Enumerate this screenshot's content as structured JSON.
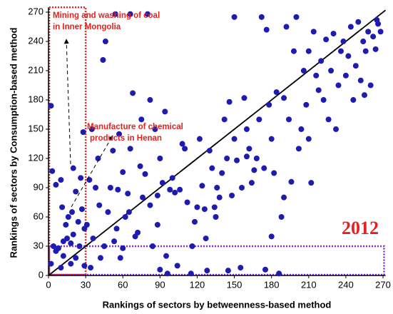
{
  "chart_data": {
    "type": "scatter",
    "xlabel": "Rankings of sectors by betweenness-based method",
    "ylabel": "Rankings of sectors by Consumption-based method",
    "xlim": [
      0,
      272
    ],
    "ylim": [
      0,
      275
    ],
    "xticks": [
      0,
      30,
      60,
      90,
      120,
      150,
      180,
      210,
      240,
      270
    ],
    "yticks": [
      0,
      30,
      60,
      90,
      120,
      150,
      180,
      210,
      240,
      270
    ],
    "annotations": [
      [
        "Mining and washing of coal",
        "in Inner Mongolia"
      ],
      [
        "Manufacture of chemical",
        "products in Henan"
      ],
      [
        "2012"
      ]
    ],
    "series": [
      {
        "color": "#1c1cb0",
        "x": [
          2,
          3,
          2,
          4,
          6,
          8,
          10,
          11,
          12,
          12,
          14,
          15,
          16,
          18,
          18,
          19,
          20,
          22,
          22,
          24,
          26,
          27,
          28,
          29,
          29,
          25,
          10,
          6,
          20,
          31,
          33,
          34,
          35,
          36,
          38,
          40,
          41,
          42,
          44,
          45,
          46,
          48,
          50,
          52,
          53,
          54,
          55,
          56,
          57,
          58,
          60,
          60,
          62,
          64,
          65,
          66,
          66,
          68,
          70,
          72,
          74,
          75,
          76,
          78,
          80,
          82,
          82,
          84,
          86,
          88,
          88,
          90,
          90,
          92,
          94,
          95,
          96,
          98,
          100,
          102,
          104,
          106,
          108,
          110,
          112,
          115,
          116,
          118,
          120,
          122,
          124,
          126,
          127,
          128,
          130,
          132,
          134,
          135,
          136,
          138,
          140,
          142,
          144,
          145,
          146,
          148,
          150,
          150,
          152,
          155,
          156,
          158,
          160,
          160,
          162,
          164,
          166,
          168,
          170,
          172,
          174,
          175,
          176,
          178,
          180,
          180,
          182,
          184,
          186,
          188,
          190,
          190,
          192,
          194,
          196,
          198,
          200,
          202,
          204,
          206,
          208,
          210,
          210,
          212,
          214,
          216,
          218,
          220,
          222,
          224,
          226,
          228,
          230,
          232,
          234,
          236,
          238,
          240,
          242,
          244,
          246,
          248,
          250,
          252,
          254,
          256,
          258,
          260,
          262,
          264,
          266,
          268,
          265,
          255
        ],
        "y": [
          174,
          107,
          12,
          30,
          25,
          28,
          98,
          70,
          35,
          20,
          52,
          38,
          60,
          33,
          12,
          65,
          110,
          86,
          18,
          55,
          100,
          68,
          147,
          48,
          10,
          30,
          8,
          93,
          42,
          52,
          98,
          8,
          150,
          38,
          90,
          120,
          72,
          18,
          221,
          30,
          240,
          65,
          90,
          128,
          35,
          268,
          48,
          88,
          145,
          18,
          28,
          106,
          60,
          84,
          65,
          130,
          268,
          187,
          40,
          44,
          112,
          160,
          80,
          104,
          268,
          72,
          180,
          30,
          150,
          52,
          82,
          6,
          120,
          95,
          168,
          20,
          2,
          88,
          100,
          85,
          10,
          88,
          135,
          130,
          75,
          2,
          30,
          55,
          70,
          140,
          92,
          68,
          38,
          5,
          128,
          110,
          70,
          60,
          90,
          80,
          105,
          160,
          120,
          5,
          178,
          82,
          265,
          140,
          118,
          8,
          90,
          182,
          122,
          150,
          130,
          95,
          108,
          120,
          160,
          265,
          110,
          6,
          252,
          175,
          40,
          140,
          105,
          188,
          2,
          60,
          182,
          80,
          255,
          160,
          96,
          230,
          265,
          130,
          150,
          210,
          175,
          140,
          230,
          95,
          250,
          205,
          190,
          220,
          180,
          242,
          160,
          210,
          248,
          150,
          195,
          230,
          240,
          205,
          225,
          255,
          180,
          215,
          260,
          200,
          240,
          230,
          250,
          195,
          245,
          232,
          258,
          250,
          262,
          185
        ]
      }
    ]
  }
}
